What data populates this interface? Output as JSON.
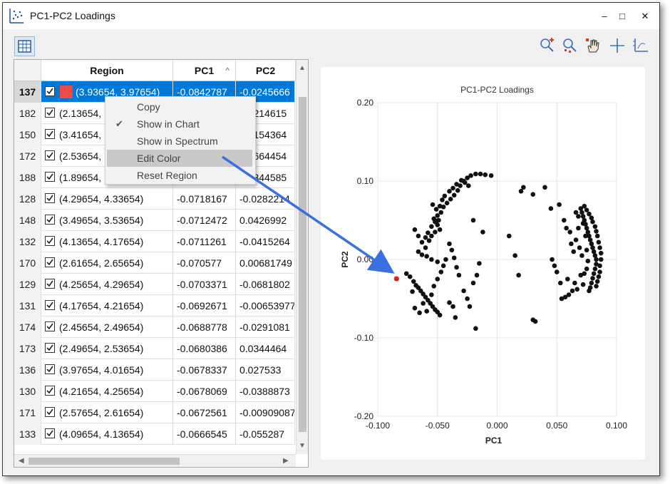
{
  "window": {
    "title": "PC1-PC2 Loadings",
    "controls": [
      "–",
      "□",
      "✕"
    ]
  },
  "toolbar": {
    "left_icon": "table-icon",
    "right_icons": [
      "zoom-in-icon",
      "zoom-region-icon",
      "pan-hand-icon",
      "crosshair-icon",
      "axis-icon"
    ]
  },
  "table": {
    "columns": [
      "",
      "Region",
      "PC1",
      "PC2"
    ],
    "sort_indicator": "^",
    "rows": [
      {
        "id": "137",
        "region": "(3.93654, 3.97654)",
        "pc1": "-0.0842787",
        "pc2": "-0.0245666",
        "selected": true
      },
      {
        "id": "182",
        "region": "(2.13654,",
        "pc1": "",
        "pc2": "0.0214615"
      },
      {
        "id": "150",
        "region": "(3.41654,",
        "pc1": "",
        "pc2": "0.0154364"
      },
      {
        "id": "172",
        "region": "(2.53654,",
        "pc1": "",
        "pc2": "0.0664454"
      },
      {
        "id": "188",
        "region": "(1.89654,",
        "pc1": "",
        "pc2": "0.0344585"
      },
      {
        "id": "128",
        "region": "(4.29654, 4.33654)",
        "pc1": "-0.0718167",
        "pc2": "-0.0282214"
      },
      {
        "id": "148",
        "region": "(3.49654, 3.53654)",
        "pc1": "-0.0712472",
        "pc2": "0.0426992"
      },
      {
        "id": "132",
        "region": "(4.13654, 4.17654)",
        "pc1": "-0.0711261",
        "pc2": "-0.0415264"
      },
      {
        "id": "170",
        "region": "(2.61654, 2.65654)",
        "pc1": "-0.070577",
        "pc2": "0.00681749"
      },
      {
        "id": "129",
        "region": "(4.25654, 4.29654)",
        "pc1": "-0.0703371",
        "pc2": "-0.0681802"
      },
      {
        "id": "131",
        "region": "(4.17654, 4.21654)",
        "pc1": "-0.0692671",
        "pc2": "-0.00653977"
      },
      {
        "id": "174",
        "region": "(2.45654, 2.49654)",
        "pc1": "-0.0688778",
        "pc2": "-0.0291081"
      },
      {
        "id": "173",
        "region": "(2.49654, 2.53654)",
        "pc1": "-0.0680386",
        "pc2": "0.0344464"
      },
      {
        "id": "136",
        "region": "(3.97654, 4.01654)",
        "pc1": "-0.0678337",
        "pc2": "0.027533"
      },
      {
        "id": "130",
        "region": "(4.21654, 4.25654)",
        "pc1": "-0.0678069",
        "pc2": "-0.0388873"
      },
      {
        "id": "171",
        "region": "(2.57654, 2.61654)",
        "pc1": "-0.0672561",
        "pc2": "-0.00909087"
      },
      {
        "id": "133",
        "region": "(4.09654, 4.13654)",
        "pc1": "-0.0666545",
        "pc2": "-0.055287"
      }
    ]
  },
  "context_menu": {
    "items": [
      {
        "label": "Copy",
        "checked": false,
        "highlighted": false
      },
      {
        "label": "Show in Chart",
        "checked": true,
        "highlighted": false
      },
      {
        "label": "Show in Spectrum",
        "checked": false,
        "highlighted": false
      },
      {
        "label": "Edit Color",
        "checked": false,
        "highlighted": true
      },
      {
        "label": "Reset Region",
        "checked": false,
        "highlighted": false
      }
    ]
  },
  "colors": {
    "selection": "#0078d7",
    "highlight_point": "#e02020",
    "point": "#111111",
    "annotation_arrow": "#3b6fe0",
    "swatch": "#ee4a4a"
  },
  "chart_data": {
    "type": "scatter",
    "title": "PC1-PC2 Loadings",
    "xlabel": "PC1",
    "ylabel": "PC2",
    "xlim": [
      -0.1,
      0.1
    ],
    "ylim": [
      -0.2,
      0.2
    ],
    "xticks": [
      "-0.100",
      "-0.050",
      "0.000",
      "0.050",
      "0.100"
    ],
    "yticks": [
      "0.20",
      "0.10",
      "0.00",
      "-0.10",
      "-0.20"
    ],
    "grid": true,
    "highlight": {
      "x": -0.0843,
      "y": -0.0246
    },
    "points": [
      [
        -0.06,
        0.028
      ],
      [
        -0.058,
        0.034
      ],
      [
        -0.055,
        0.042
      ],
      [
        -0.052,
        0.048
      ],
      [
        -0.05,
        0.056
      ],
      [
        -0.047,
        0.06
      ],
      [
        -0.045,
        0.067
      ],
      [
        -0.042,
        0.072
      ],
      [
        -0.039,
        0.077
      ],
      [
        -0.036,
        0.082
      ],
      [
        -0.033,
        0.088
      ],
      [
        -0.031,
        0.094
      ],
      [
        -0.028,
        0.1
      ],
      [
        -0.025,
        0.104
      ],
      [
        -0.022,
        0.107
      ],
      [
        -0.018,
        0.109
      ],
      [
        -0.014,
        0.109
      ],
      [
        -0.01,
        0.108
      ],
      [
        -0.005,
        0.107
      ],
      [
        -0.054,
        0.07
      ],
      [
        -0.051,
        0.064
      ],
      [
        -0.048,
        0.068
      ],
      [
        -0.046,
        0.076
      ],
      [
        -0.044,
        0.081
      ],
      [
        -0.04,
        0.087
      ],
      [
        -0.037,
        0.091
      ],
      [
        -0.034,
        0.096
      ],
      [
        -0.03,
        0.101
      ],
      [
        -0.027,
        0.098
      ],
      [
        -0.024,
        0.094
      ],
      [
        -0.053,
        0.052
      ],
      [
        -0.051,
        0.049
      ],
      [
        -0.049,
        0.05
      ],
      [
        -0.05,
        0.044
      ],
      [
        -0.048,
        0.038
      ],
      [
        -0.052,
        0.035
      ],
      [
        -0.055,
        0.03
      ],
      [
        -0.057,
        0.024
      ],
      [
        -0.06,
        0.015
      ],
      [
        -0.063,
        0.022
      ],
      [
        -0.066,
        0.03
      ],
      [
        -0.069,
        0.038
      ],
      [
        -0.066,
        0.01
      ],
      [
        -0.063,
        0.006
      ],
      [
        -0.059,
        0.004
      ],
      [
        -0.055,
        0.0
      ],
      [
        -0.05,
        -0.003
      ],
      [
        -0.076,
        -0.018
      ],
      [
        -0.073,
        -0.022
      ],
      [
        -0.07,
        -0.028
      ],
      [
        -0.068,
        -0.033
      ],
      [
        -0.066,
        -0.036
      ],
      [
        -0.064,
        -0.04
      ],
      [
        -0.062,
        -0.044
      ],
      [
        -0.06,
        -0.048
      ],
      [
        -0.058,
        -0.052
      ],
      [
        -0.056,
        -0.056
      ],
      [
        -0.054,
        -0.06
      ],
      [
        -0.052,
        -0.064
      ],
      [
        -0.05,
        -0.067
      ],
      [
        -0.048,
        -0.071
      ],
      [
        -0.071,
        -0.041
      ],
      [
        -0.069,
        -0.062
      ],
      [
        -0.065,
        -0.068
      ],
      [
        -0.062,
        -0.056
      ],
      [
        -0.059,
        -0.066
      ],
      [
        -0.055,
        -0.045
      ],
      [
        -0.053,
        -0.034
      ],
      [
        -0.05,
        -0.025
      ],
      [
        -0.047,
        -0.016
      ],
      [
        -0.045,
        -0.008
      ],
      [
        -0.043,
        0.0
      ],
      [
        -0.04,
        0.02
      ],
      [
        -0.038,
        0.012
      ],
      [
        -0.036,
        0.002
      ],
      [
        -0.034,
        -0.01
      ],
      [
        -0.032,
        -0.02
      ],
      [
        -0.04,
        -0.055
      ],
      [
        -0.037,
        -0.06
      ],
      [
        -0.035,
        -0.074
      ],
      [
        -0.028,
        -0.04
      ],
      [
        -0.025,
        -0.05
      ],
      [
        -0.023,
        -0.06
      ],
      [
        -0.02,
        -0.03
      ],
      [
        -0.017,
        -0.02
      ],
      [
        -0.015,
        -0.005
      ],
      [
        -0.012,
        0.035
      ],
      [
        -0.02,
        0.05
      ],
      [
        -0.018,
        -0.088
      ],
      [
        0.01,
        0.03
      ],
      [
        0.015,
        0.005
      ],
      [
        0.018,
        -0.02
      ],
      [
        0.02,
        0.087
      ],
      [
        0.022,
        0.092
      ],
      [
        0.03,
        0.083
      ],
      [
        0.03,
        -0.077
      ],
      [
        0.032,
        -0.079
      ],
      [
        0.04,
        0.092
      ],
      [
        0.045,
        0.065
      ],
      [
        0.046,
        0.0
      ],
      [
        0.048,
        -0.008
      ],
      [
        0.05,
        -0.016
      ],
      [
        0.052,
        0.07
      ],
      [
        0.053,
        -0.03
      ],
      [
        0.054,
        -0.05
      ],
      [
        0.056,
        0.05
      ],
      [
        0.057,
        -0.048
      ],
      [
        0.058,
        0.04
      ],
      [
        0.059,
        -0.025
      ],
      [
        0.06,
        -0.045
      ],
      [
        0.061,
        0.035
      ],
      [
        0.062,
        0.02
      ],
      [
        0.063,
        -0.04
      ],
      [
        0.064,
        0.01
      ],
      [
        0.065,
        -0.03
      ],
      [
        0.066,
        0.025
      ],
      [
        0.067,
        -0.038
      ],
      [
        0.068,
        0.055
      ],
      [
        0.069,
        0.015
      ],
      [
        0.07,
        -0.02
      ],
      [
        0.07,
        0.065
      ],
      [
        0.071,
        0.06
      ],
      [
        0.072,
        0.055
      ],
      [
        0.073,
        0.05
      ],
      [
        0.074,
        0.045
      ],
      [
        0.075,
        0.04
      ],
      [
        0.076,
        0.035
      ],
      [
        0.077,
        0.03
      ],
      [
        0.078,
        0.025
      ],
      [
        0.079,
        0.02
      ],
      [
        0.08,
        0.015
      ],
      [
        0.081,
        0.01
      ],
      [
        0.082,
        0.005
      ],
      [
        0.083,
        0.0
      ],
      [
        0.083,
        -0.006
      ],
      [
        0.082,
        -0.012
      ],
      [
        0.081,
        -0.018
      ],
      [
        0.08,
        -0.024
      ],
      [
        0.079,
        -0.03
      ],
      [
        0.078,
        -0.036
      ],
      [
        0.077,
        -0.04
      ],
      [
        0.073,
        0.068
      ],
      [
        0.075,
        0.063
      ],
      [
        0.077,
        0.058
      ],
      [
        0.079,
        0.053
      ],
      [
        0.08,
        0.048
      ],
      [
        0.082,
        0.042
      ],
      [
        0.083,
        0.036
      ],
      [
        0.084,
        0.03
      ],
      [
        0.085,
        0.022
      ],
      [
        0.086,
        0.015
      ],
      [
        0.087,
        0.008
      ],
      [
        0.087,
        0.0
      ],
      [
        0.086,
        -0.008
      ],
      [
        0.086,
        -0.016
      ],
      [
        0.085,
        -0.022
      ],
      [
        0.084,
        -0.028
      ],
      [
        0.083,
        -0.034
      ],
      [
        0.072,
        0.046
      ],
      [
        0.074,
        0.03
      ],
      [
        0.075,
        0.012
      ],
      [
        0.076,
        -0.002
      ],
      [
        0.075,
        -0.012
      ],
      [
        0.073,
        -0.018
      ],
      [
        0.071,
        0.005
      ],
      [
        0.068,
        0.04
      ],
      [
        0.066,
        0.06
      ],
      [
        0.072,
        -0.032
      ]
    ]
  }
}
